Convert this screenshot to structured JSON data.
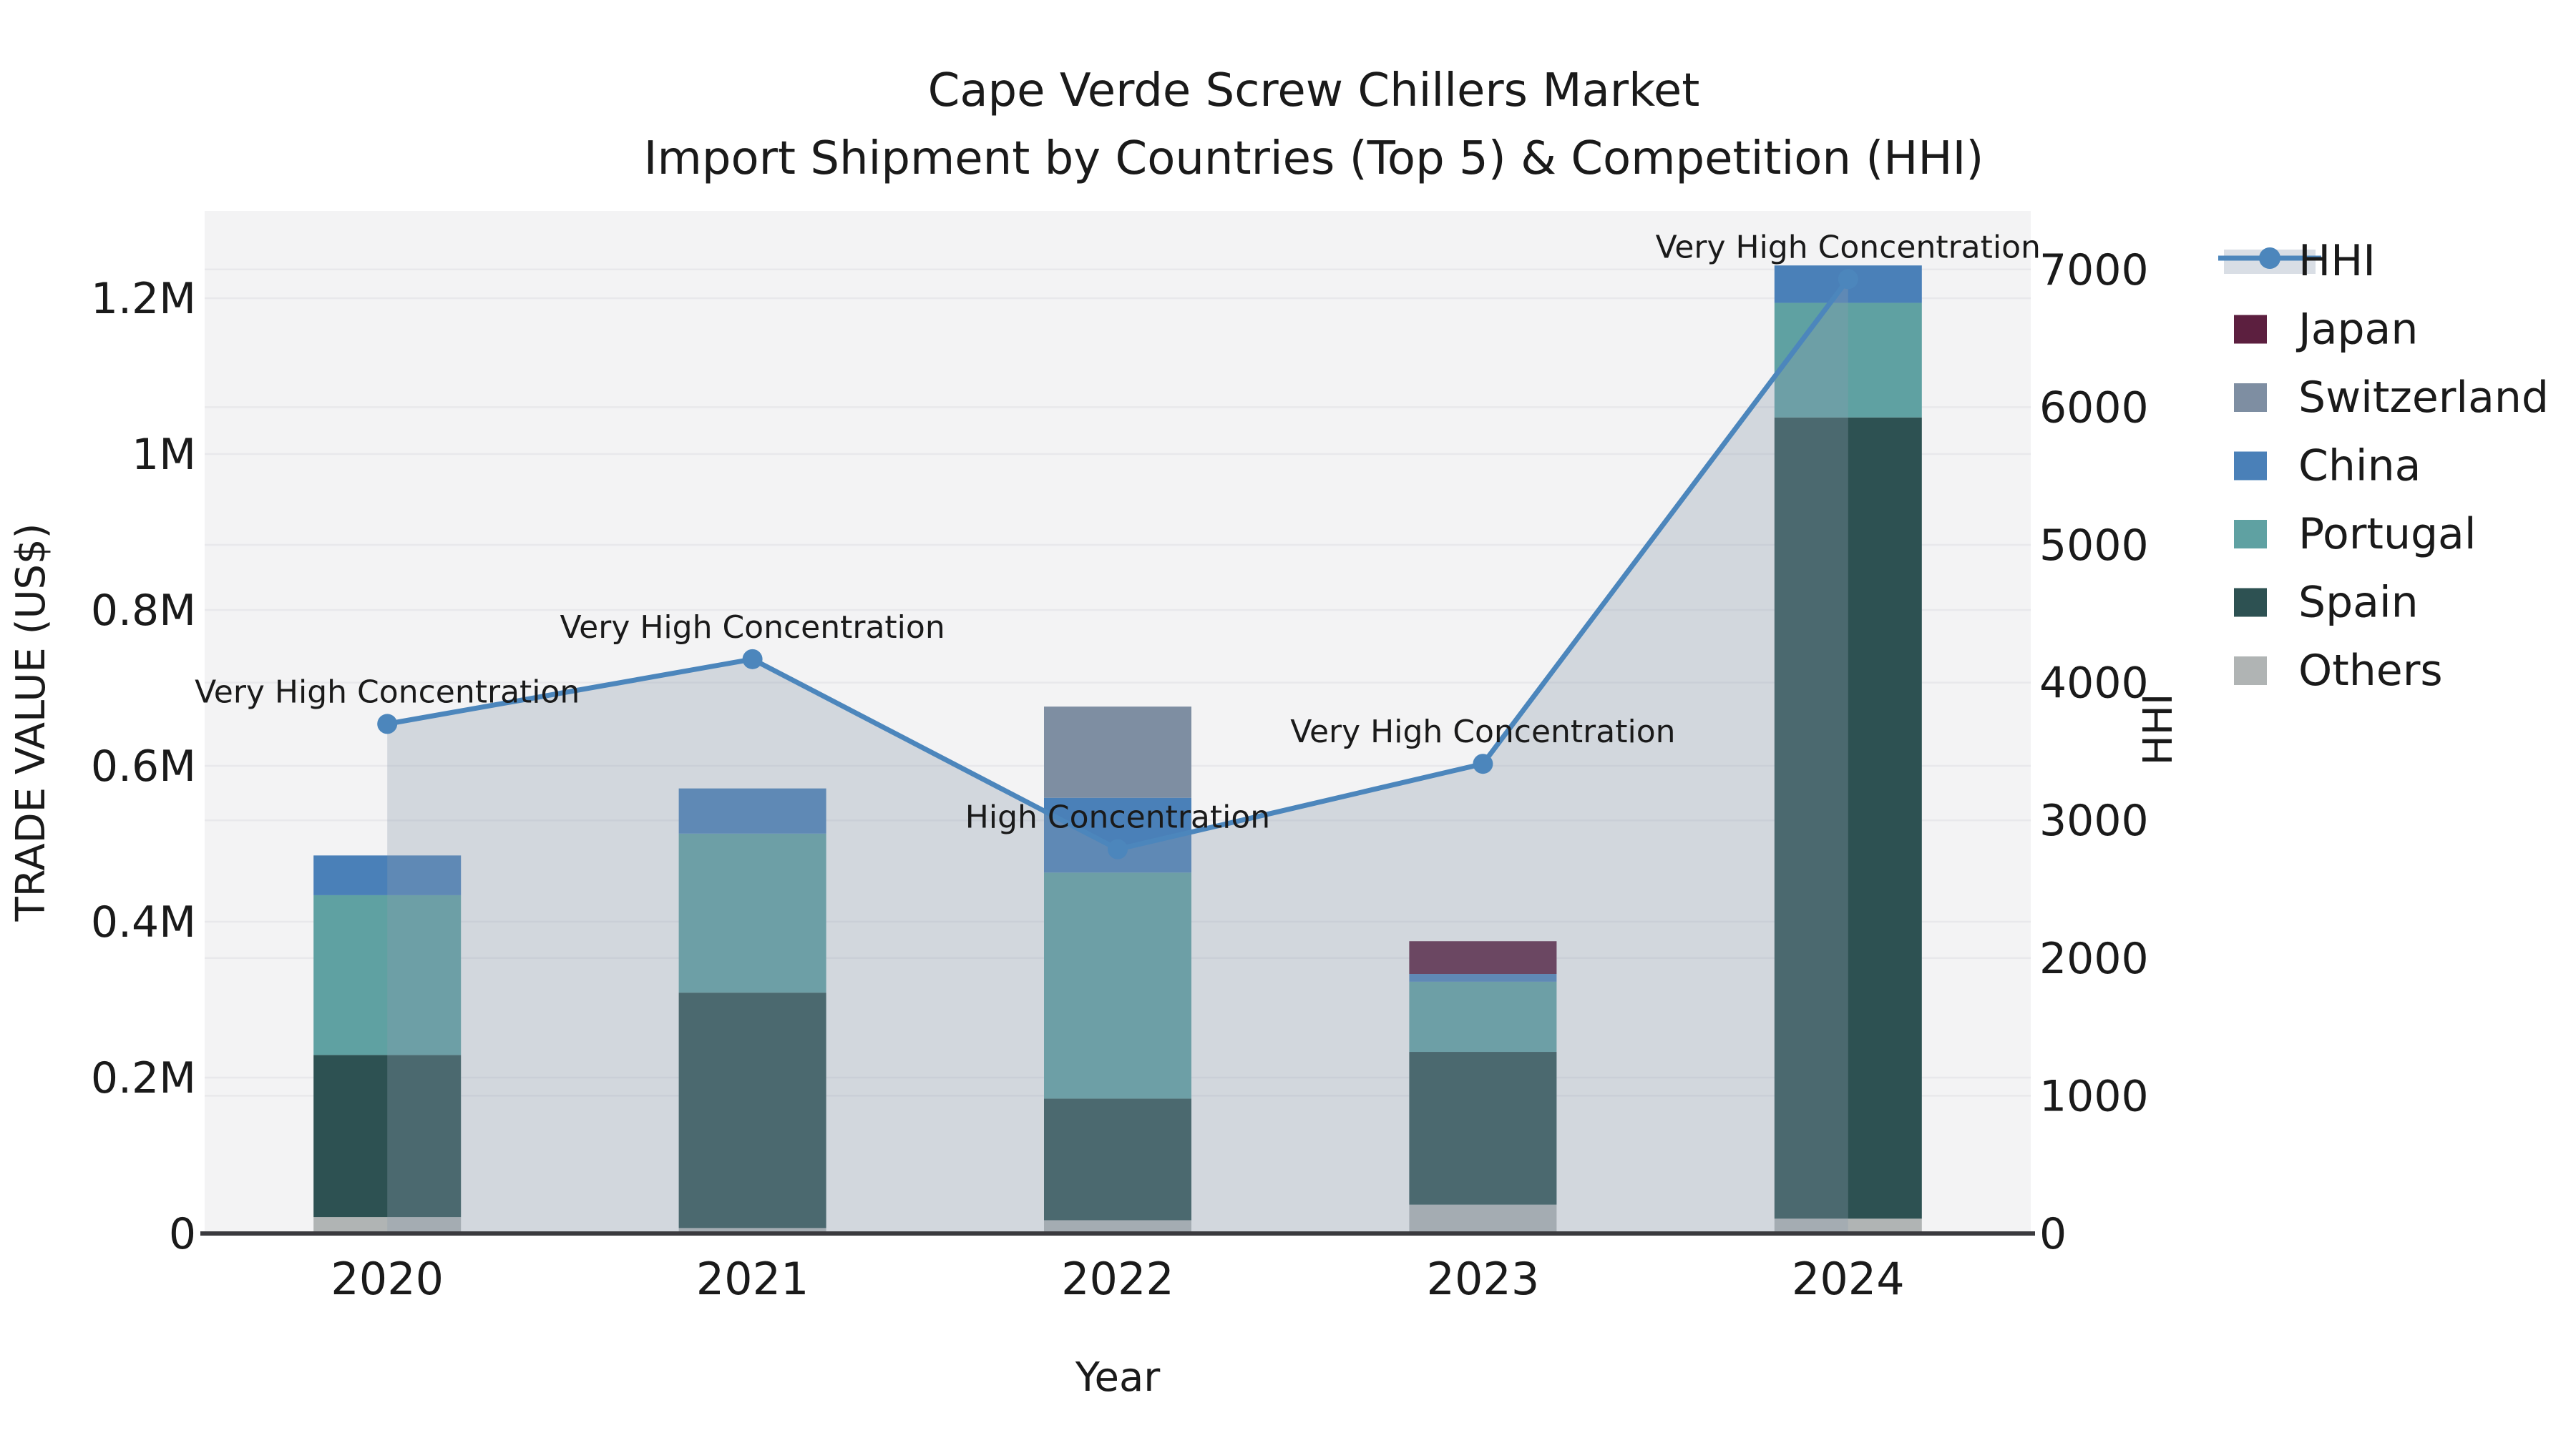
{
  "title": {
    "line1": "Cape Verde Screw Chillers Market",
    "line2": "Import Shipment by Countries (Top 5) & Competition (HHI)"
  },
  "axes": {
    "x_label": "Year",
    "y_left_label": "TRADE VALUE (US$)",
    "y_right_label": "HHI",
    "left_ticks": [
      {
        "label": "0",
        "value": 0
      },
      {
        "label": "0.2M",
        "value": 200000
      },
      {
        "label": "0.4M",
        "value": 400000
      },
      {
        "label": "0.6M",
        "value": 600000
      },
      {
        "label": "0.8M",
        "value": 800000
      },
      {
        "label": "1M",
        "value": 1000000
      },
      {
        "label": "1.2M",
        "value": 1200000
      }
    ],
    "right_ticks": [
      {
        "label": "0",
        "value": 0
      },
      {
        "label": "1000",
        "value": 1000
      },
      {
        "label": "2000",
        "value": 2000
      },
      {
        "label": "3000",
        "value": 3000
      },
      {
        "label": "4000",
        "value": 4000
      },
      {
        "label": "5000",
        "value": 5000
      },
      {
        "label": "6000",
        "value": 6000
      },
      {
        "label": "7000",
        "value": 7000
      }
    ]
  },
  "legend": {
    "items": [
      {
        "label": "HHI",
        "type": "line",
        "color": "#4C86BC"
      },
      {
        "label": "Japan",
        "type": "swatch",
        "color": "#5C1F3F"
      },
      {
        "label": "Switzerland",
        "type": "swatch",
        "color": "#7E8EA2"
      },
      {
        "label": "China",
        "type": "swatch",
        "color": "#4A80B8"
      },
      {
        "label": "Portugal",
        "type": "swatch",
        "color": "#5FA1A2"
      },
      {
        "label": "Spain",
        "type": "swatch",
        "color": "#2D5152"
      },
      {
        "label": "Others",
        "type": "swatch",
        "color": "#B0B4B4"
      }
    ]
  },
  "chart_data": {
    "type": "bar",
    "subtype": "stacked-bars-with-line-overlay",
    "title": "Cape Verde Screw Chillers Market — Import Shipment by Countries (Top 5) & Competition (HHI)",
    "xlabel": "Year",
    "ylabel_left": "TRADE VALUE (US$)",
    "ylabel_right": "HHI",
    "categories": [
      "2020",
      "2021",
      "2022",
      "2023",
      "2024"
    ],
    "series": [
      {
        "name": "Others",
        "color": "#B0B4B4",
        "values": [
          21000,
          7000,
          17000,
          37000,
          19000
        ]
      },
      {
        "name": "Spain",
        "color": "#2D5152",
        "values": [
          208000,
          302000,
          156000,
          196000,
          1028000
        ]
      },
      {
        "name": "Portugal",
        "color": "#5FA1A2",
        "values": [
          205000,
          204000,
          290000,
          90000,
          147000
        ]
      },
      {
        "name": "China",
        "color": "#4A80B8",
        "values": [
          51000,
          58000,
          96000,
          10000,
          48000
        ]
      },
      {
        "name": "Switzerland",
        "color": "#7E8EA2",
        "values": [
          0,
          0,
          117000,
          0,
          0
        ]
      },
      {
        "name": "Japan",
        "color": "#5C1F3F",
        "values": [
          0,
          0,
          0,
          42000,
          0
        ]
      }
    ],
    "bar_totals": [
      485000,
      571000,
      676000,
      375000,
      1242000
    ],
    "line_series": {
      "name": "HHI",
      "axis": "right",
      "color": "#4C86BC",
      "values": [
        3700,
        4170,
        2790,
        3410,
        6930
      ],
      "area_fill": "rgba(140,155,175,0.32)",
      "marker": "circle"
    },
    "annotations": [
      {
        "category": "2020",
        "text": "Very High Concentration"
      },
      {
        "category": "2021",
        "text": "Very High Concentration"
      },
      {
        "category": "2022",
        "text": "High Concentration"
      },
      {
        "category": "2023",
        "text": "Very High Concentration"
      },
      {
        "category": "2024",
        "text": "Very High Concentration"
      }
    ],
    "ylim_left": [
      0,
      1310000
    ],
    "ylim_right": [
      0,
      7420
    ],
    "grid": true,
    "legend_position": "right"
  },
  "colors": {
    "plot_bg": "#F3F3F4",
    "grid": "#E8E8EB",
    "axis_line": "#3A3A3E",
    "text": "#1A1A1A",
    "annotation": "#111111"
  }
}
